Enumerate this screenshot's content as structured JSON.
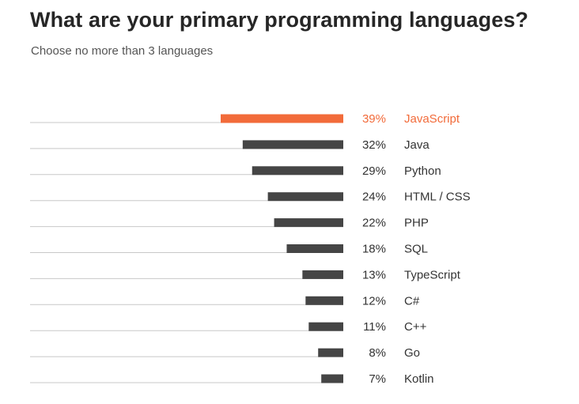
{
  "header": {
    "title": "What are your primary programming languages?",
    "subtitle": "Choose no more than 3 languages"
  },
  "chart_data": {
    "type": "bar",
    "orientation": "horizontal",
    "title": "What are your primary programming languages?",
    "subtitle": "Choose no more than 3 languages",
    "categories": [
      "JavaScript",
      "Java",
      "Python",
      "HTML / CSS",
      "PHP",
      "SQL",
      "TypeScript",
      "C#",
      "C++",
      "Go",
      "Kotlin"
    ],
    "values": [
      39,
      32,
      29,
      24,
      22,
      18,
      13,
      12,
      11,
      8,
      7
    ],
    "value_labels": [
      "39%",
      "32%",
      "29%",
      "24%",
      "22%",
      "18%",
      "13%",
      "12%",
      "11%",
      "8%",
      "7%"
    ],
    "unit": "%",
    "xlim": [
      0,
      100
    ],
    "highlight_index": 0,
    "colors": {
      "highlight": "#f26b3a",
      "bar": "#454545",
      "baseline": "#c8c8c8",
      "text": "#333333"
    }
  }
}
